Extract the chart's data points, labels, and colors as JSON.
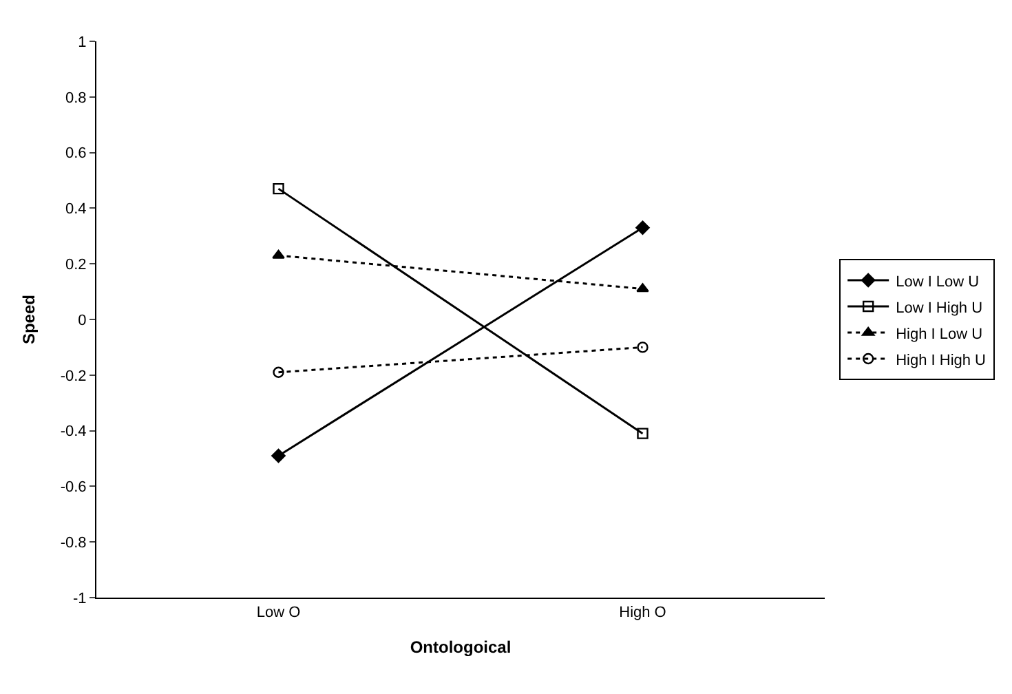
{
  "chart_data": {
    "type": "line",
    "xlabel": "Ontologoical",
    "ylabel": "Speed",
    "categories": [
      "Low O",
      "High O"
    ],
    "series": [
      {
        "name": "Low I Low U",
        "color": "#000000",
        "values": [
          -0.49,
          0.33
        ],
        "marker": "diamond",
        "line_style": "solid"
      },
      {
        "name": "Low I High U",
        "color": "#000000",
        "values": [
          0.47,
          -0.41
        ],
        "marker": "square",
        "line_style": "solid"
      },
      {
        "name": "High I Low U",
        "color": "#000000",
        "values": [
          0.23,
          0.11
        ],
        "marker": "triangle",
        "line_style": "dotted"
      },
      {
        "name": "High I High U",
        "color": "#000000",
        "values": [
          -0.19,
          -0.1
        ],
        "marker": "circle",
        "line_style": "dotted"
      }
    ],
    "ylim": [
      -1,
      1
    ],
    "yticks": [
      -1,
      -0.8,
      -0.6,
      -0.4,
      -0.2,
      0,
      0.2,
      0.4,
      0.6,
      0.8,
      1
    ],
    "grid": false,
    "legend": "right"
  }
}
